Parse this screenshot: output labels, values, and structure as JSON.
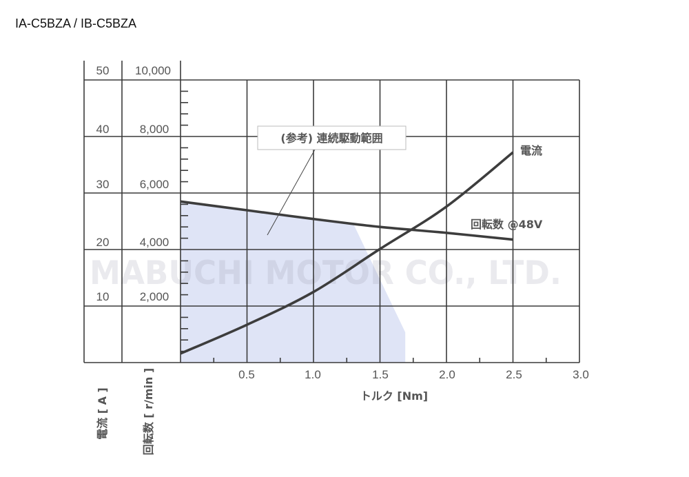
{
  "title": "IA-C5BZA / IB-C5BZA",
  "axes": {
    "x_label": "トルク [Nm]",
    "x_ticks": [
      "0.5",
      "1.0",
      "1.5",
      "2.0",
      "2.5",
      "3.0"
    ],
    "current_label": "電流 [ A ]",
    "current_ticks": [
      "50",
      "40",
      "30",
      "20",
      "10"
    ],
    "speed_label": "回転数 [ r/min ]",
    "speed_ticks": [
      "10,000",
      "8,000",
      "6,000",
      "4,000",
      "2,000"
    ]
  },
  "annotations": {
    "region_label": "(参考) 連続駆動範囲",
    "current_curve_label": "電流",
    "speed_curve_label": "回転数 @48V",
    "watermark": "MABUCHI MOTOR CO., LTD."
  },
  "colors": {
    "curve": "#3d3d3d",
    "grid": "#3a3a3a",
    "region_fill": "#dfe4f6",
    "text": "#555555",
    "annotation_box_stroke": "#bbbbbb"
  },
  "chart_data": {
    "type": "line",
    "title": "IA-C5BZA / IB-C5BZA",
    "xlabel": "トルク [Nm]",
    "ylabel_left_outer": "電流 [ A ]",
    "ylabel_left_inner": "回転数 [ r/min ]",
    "xlim": [
      0,
      3.0
    ],
    "xticks": [
      0.5,
      1.0,
      1.5,
      2.0,
      2.5,
      3.0
    ],
    "ylim_current": [
      0,
      50
    ],
    "yticks_current": [
      10,
      20,
      30,
      40,
      50
    ],
    "ylim_speed": [
      0,
      10000
    ],
    "yticks_speed": [
      2000,
      4000,
      6000,
      8000,
      10000
    ],
    "grid": true,
    "x": [
      0,
      0.5,
      1.0,
      1.5,
      2.0,
      2.5
    ],
    "series": [
      {
        "name": "回転数 @48V",
        "axis": "speed",
        "unit": "r/min",
        "values": [
          5700,
          5390,
          5080,
          4800,
          4590,
          4350
        ]
      },
      {
        "name": "電流",
        "axis": "current",
        "unit": "A",
        "values": [
          1.6,
          6.7,
          12.5,
          20.1,
          27.6,
          37.2
        ]
      }
    ],
    "region": {
      "name": "(参考) 連続駆動範囲",
      "axis": "speed",
      "points": [
        [
          0,
          5700
        ],
        [
          0.5,
          5390
        ],
        [
          1.0,
          5080
        ],
        [
          1.3,
          4910
        ],
        [
          1.69,
          1070
        ],
        [
          1.69,
          0
        ],
        [
          0,
          0
        ]
      ]
    },
    "watermark": "MABUCHI MOTOR CO., LTD."
  }
}
